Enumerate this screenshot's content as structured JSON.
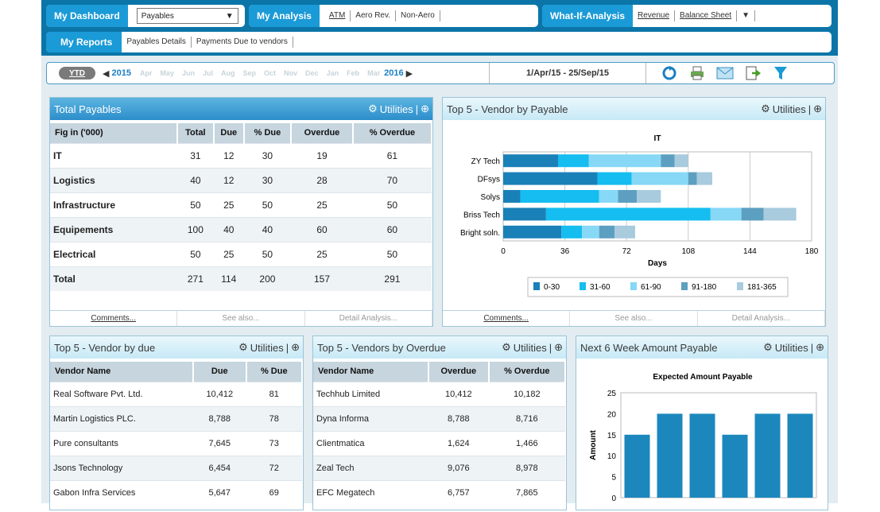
{
  "nav": {
    "dashboard_label": "My Dashboard",
    "dashboard_select": "Payables",
    "analysis_label": "My Analysis",
    "analysis_links": [
      "ATM",
      "Aero Rev.",
      "Non-Aero"
    ],
    "whatif_label": "What-If-Analysis",
    "whatif_links": [
      "Revenue",
      "Balance Sheet"
    ],
    "reports_label": "My Reports",
    "reports_links": [
      "Payables Details",
      "Payments Due to vendors"
    ]
  },
  "datebar": {
    "ytd": "YTD",
    "year_start": "2015",
    "months": [
      "Apr",
      "May",
      "Jun",
      "Jul",
      "Aug",
      "Sep",
      "Oct",
      "Nov",
      "Dec",
      "Jan",
      "Feb",
      "Mar"
    ],
    "year_end": "2016",
    "range": "1/Apr/15 - 25/Sep/15"
  },
  "utilities_label": "Utilities",
  "footer": {
    "comments": "Comments...",
    "see_also": "See also...",
    "detail": "Detail Analysis..."
  },
  "total_payables": {
    "title": "Total Payables",
    "headers": [
      "Fig in ('000)",
      "Total",
      "Due",
      "% Due",
      "Overdue",
      "% Overdue"
    ],
    "rows": [
      [
        "IT",
        "31",
        "12",
        "30",
        "19",
        "61"
      ],
      [
        "Logistics",
        "40",
        "12",
        "30",
        "28",
        "70"
      ],
      [
        "Infrastructure",
        "50",
        "25",
        "50",
        "25",
        "50"
      ],
      [
        "Equipements",
        "100",
        "40",
        "40",
        "60",
        "60"
      ],
      [
        "Electrical",
        "50",
        "25",
        "50",
        "25",
        "50"
      ],
      [
        "Total",
        "271",
        "114",
        "200",
        "157",
        "291"
      ]
    ]
  },
  "top5_payable": {
    "title": "Top 5 - Vendor by Payable",
    "chart_data": {
      "type": "bar",
      "orientation": "horizontal",
      "stacked": true,
      "title": "IT",
      "xlabel": "Days",
      "ylabel": "",
      "xlim": [
        0,
        180
      ],
      "xticks": [
        0,
        36,
        72,
        108,
        144,
        180
      ],
      "categories": [
        "ZY Tech",
        "DFsys",
        "Solys",
        "Briss Tech",
        "Bright soln."
      ],
      "series": [
        {
          "name": "0-30",
          "color": "#1a80b8",
          "values": [
            32,
            55,
            10,
            25,
            34
          ]
        },
        {
          "name": "31-60",
          "color": "#15bdf0",
          "values": [
            18,
            20,
            46,
            96,
            12
          ]
        },
        {
          "name": "61-90",
          "color": "#86d8f6",
          "values": [
            42,
            33,
            11,
            18,
            10
          ]
        },
        {
          "name": "91-180",
          "color": "#5d9fc0",
          "values": [
            8,
            5,
            11,
            13,
            9
          ]
        },
        {
          "name": "181-365",
          "color": "#a8cbdd",
          "values": [
            8,
            9,
            14,
            19,
            12
          ]
        }
      ],
      "legend": "bottom"
    }
  },
  "top5_due": {
    "title": "Top 5 - Vendor by due",
    "headers": [
      "Vendor Name",
      "Due",
      "% Due"
    ],
    "rows": [
      [
        "Real Software Pvt. Ltd.",
        "10,412",
        "81"
      ],
      [
        "Martin Logistics PLC.",
        "8,788",
        "78"
      ],
      [
        "Pure consultants",
        "7,645",
        "73"
      ],
      [
        "Jsons Technology",
        "6,454",
        "72"
      ],
      [
        "Gabon Infra Services",
        "5,647",
        "69"
      ]
    ]
  },
  "top5_overdue": {
    "title": "Top 5 - Vendors by Overdue",
    "headers": [
      "Vendor Name",
      "Overdue",
      "% Overdue"
    ],
    "rows": [
      [
        "Techhub Limited",
        "10,412",
        "10,182"
      ],
      [
        "Dyna Informa",
        "8,788",
        "8,716"
      ],
      [
        "Clientmatica",
        "1,624",
        "1,466"
      ],
      [
        "Zeal Tech",
        "9,076",
        "8,978"
      ],
      [
        "EFC Megatech",
        "6,757",
        "7,865"
      ]
    ]
  },
  "next6": {
    "title": "Next 6 Week Amount Payable",
    "chart_data": {
      "type": "bar",
      "title": "Expected Amount Payable",
      "xlabel": "",
      "ylabel": "Amount",
      "ylim": [
        0,
        25
      ],
      "yticks": [
        0,
        5,
        10,
        15,
        20,
        25
      ],
      "values": [
        15,
        20,
        20,
        15,
        20,
        20
      ],
      "color": "#1b87bd"
    }
  }
}
